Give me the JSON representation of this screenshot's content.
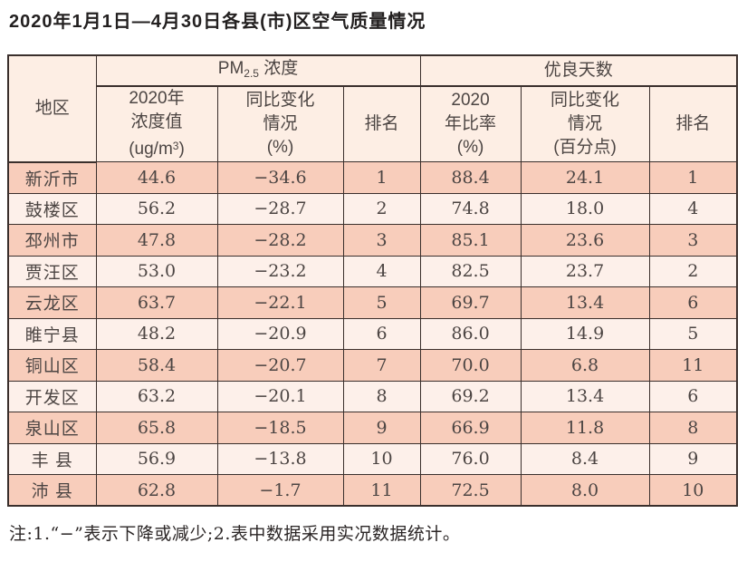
{
  "title": "2020年1月1日—4月30日各县(市)区空气质量情况",
  "note": "注:1.“−”表示下降或减少;2.表中数据采用实况数据统计。",
  "colors": {
    "border": "#3a2f2c",
    "row_odd": "#f8cdbb",
    "row_even": "#fdf0ea",
    "header_bg": "#fdeee4",
    "cell_text": "#4c4543",
    "title_text": "#232020"
  },
  "table": {
    "header": {
      "region": "地区",
      "pm_group": {
        "prefix": "PM",
        "sub": "2.5",
        "suffix": " 浓度"
      },
      "good_group": "优良天数",
      "conc": {
        "line1": "2020年",
        "line2": "浓度值",
        "line3_pre": "(ug/m",
        "sup": "3",
        "line3_post": ")"
      },
      "pm_change": {
        "line1": "同比变化",
        "line2": "情况",
        "line3": "(%)"
      },
      "pm_rank": "排名",
      "rate": {
        "line1": "2020",
        "line2": "年比率",
        "line3": "(%)"
      },
      "good_change": {
        "line1": "同比变化",
        "line2": "情况",
        "line3": "(百分点)"
      },
      "good_rank": "排名"
    },
    "rows": [
      {
        "region": "新沂市",
        "pm_value": "44.6",
        "pm_change": "−34.6",
        "pm_rank": "1",
        "good_rate": "88.4",
        "good_change": "24.1",
        "good_rank": "1"
      },
      {
        "region": "鼓楼区",
        "pm_value": "56.2",
        "pm_change": "−28.7",
        "pm_rank": "2",
        "good_rate": "74.8",
        "good_change": "18.0",
        "good_rank": "4"
      },
      {
        "region": "邳州市",
        "pm_value": "47.8",
        "pm_change": "−28.2",
        "pm_rank": "3",
        "good_rate": "85.1",
        "good_change": "23.6",
        "good_rank": "3"
      },
      {
        "region": "贾汪区",
        "pm_value": "53.0",
        "pm_change": "−23.2",
        "pm_rank": "4",
        "good_rate": "82.5",
        "good_change": "23.7",
        "good_rank": "2"
      },
      {
        "region": "云龙区",
        "pm_value": "63.7",
        "pm_change": "−22.1",
        "pm_rank": "5",
        "good_rate": "69.7",
        "good_change": "13.4",
        "good_rank": "6"
      },
      {
        "region": "睢宁县",
        "pm_value": "48.2",
        "pm_change": "−20.9",
        "pm_rank": "6",
        "good_rate": "86.0",
        "good_change": "14.9",
        "good_rank": "5"
      },
      {
        "region": "铜山区",
        "pm_value": "58.4",
        "pm_change": "−20.7",
        "pm_rank": "7",
        "good_rate": "70.0",
        "good_change": "6.8",
        "good_rank": "11"
      },
      {
        "region": "开发区",
        "pm_value": "63.2",
        "pm_change": "−20.1",
        "pm_rank": "8",
        "good_rate": "69.2",
        "good_change": "13.4",
        "good_rank": "6"
      },
      {
        "region": "泉山区",
        "pm_value": "65.8",
        "pm_change": "−18.5",
        "pm_rank": "9",
        "good_rate": "66.9",
        "good_change": "11.8",
        "good_rank": "8"
      },
      {
        "region": "丰 县",
        "pm_value": "56.9",
        "pm_change": "−13.8",
        "pm_rank": "10",
        "good_rate": "76.0",
        "good_change": "8.4",
        "good_rank": "9"
      },
      {
        "region": "沛 县",
        "pm_value": "62.8",
        "pm_change": "−1.7",
        "pm_rank": "11",
        "good_rate": "72.5",
        "good_change": "8.0",
        "good_rank": "10"
      }
    ]
  }
}
